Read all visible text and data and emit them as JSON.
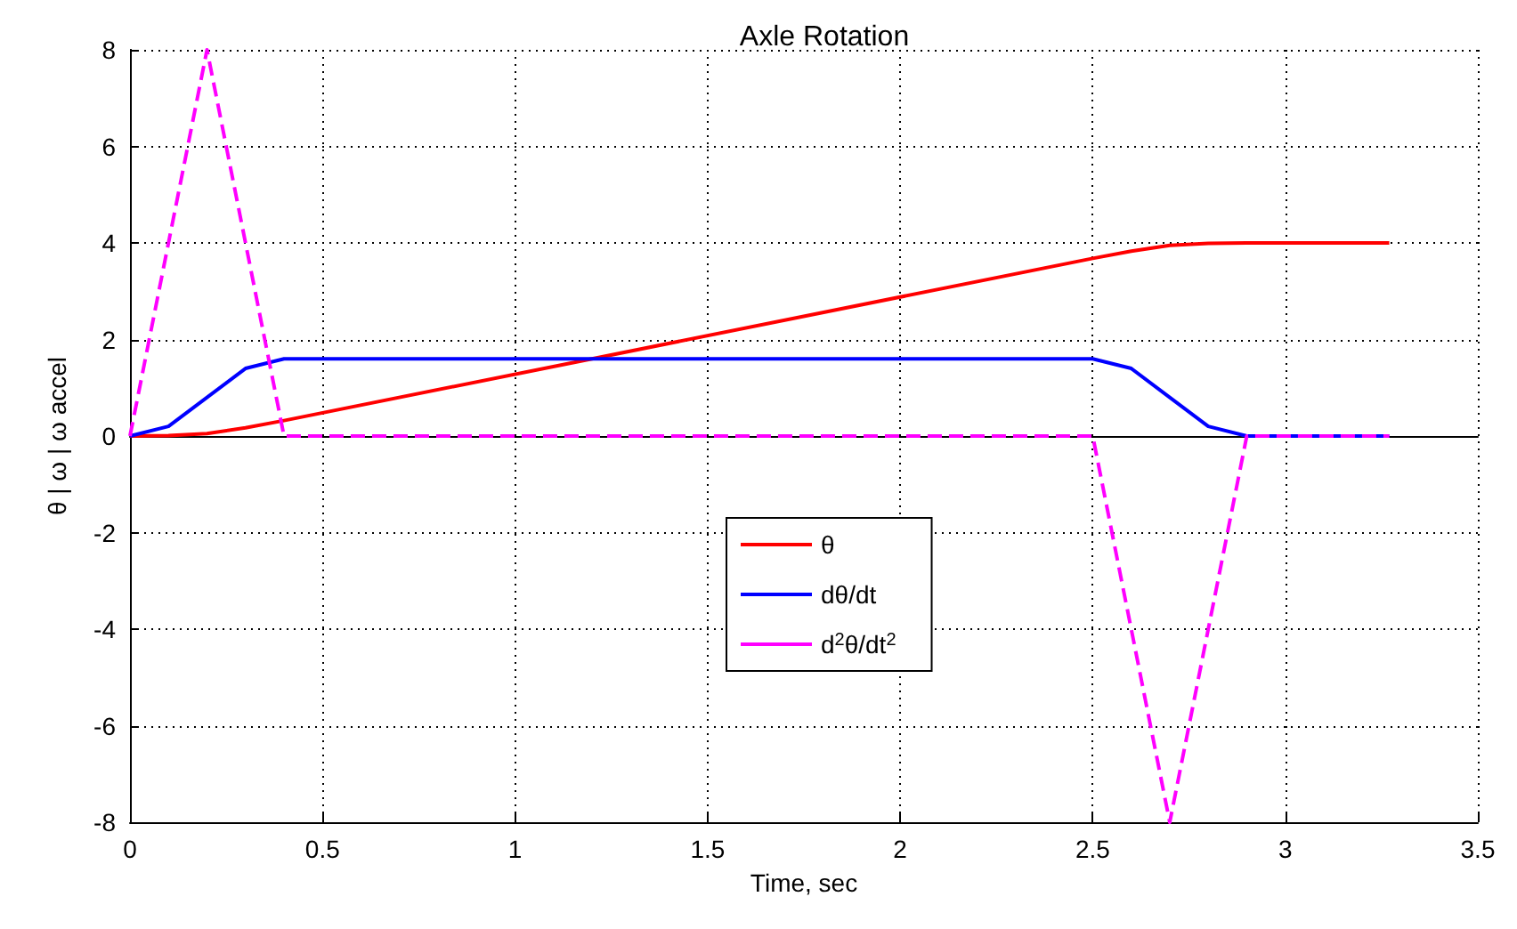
{
  "chart_data": {
    "type": "line",
    "title": "Axle Rotation",
    "xlabel": "Time, sec",
    "ylabel": "θ | ω | ω accel",
    "xlim": [
      0,
      3.5
    ],
    "xticks": [
      0,
      0.5,
      1,
      1.5,
      2,
      2.5,
      3,
      3.5
    ],
    "ylim": [
      -8,
      8
    ],
    "yticks": [
      -8,
      -6,
      -4,
      -2,
      0,
      2,
      4,
      6,
      8
    ],
    "grid": true,
    "legend": "center",
    "marker": "none",
    "series": [
      {
        "name": "θ",
        "color": "#ff0000",
        "line_style": "solid",
        "x": [
          0,
          0.1,
          0.2,
          0.3,
          0.4,
          2.5,
          2.6,
          2.7,
          2.8,
          2.9,
          3.27
        ],
        "values": [
          0,
          0.01,
          0.05,
          0.17,
          0.32,
          3.68,
          3.83,
          3.95,
          3.99,
          4,
          4
        ]
      },
      {
        "name": "dθ/dt",
        "color": "#0000ff",
        "line_style": "solid",
        "x": [
          0,
          0.1,
          0.2,
          0.3,
          0.4,
          2.5,
          2.6,
          2.7,
          2.8,
          2.9,
          3.27
        ],
        "values": [
          0,
          0.2,
          0.8,
          1.4,
          1.6,
          1.6,
          1.4,
          0.8,
          0.2,
          0,
          0
        ]
      },
      {
        "name": "d$^{2}$θ/dt$^{2}$",
        "color": "#ff00ff",
        "line_style": "dashed",
        "x": [
          0,
          0.2,
          0.4,
          2.5,
          2.7,
          2.9,
          3.27
        ],
        "values": [
          0,
          8,
          0,
          0,
          -8,
          0,
          0
        ]
      }
    ]
  }
}
